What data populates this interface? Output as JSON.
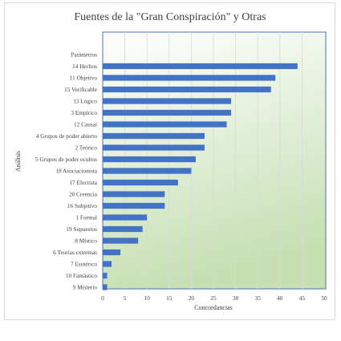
{
  "chart_data": {
    "type": "bar",
    "orientation": "horizontal",
    "title": "Fuentes de la \"Gran Conspiración\" y Otras",
    "xlabel": "Concordancias",
    "ylabel": "Análisis",
    "xlim": [
      0,
      50
    ],
    "x_ticks": [
      "0",
      "5",
      "10",
      "15",
      "20",
      "25",
      "30",
      "35",
      "40",
      "45",
      "50"
    ],
    "grid": true,
    "legend": "none",
    "colors": {
      "bar": "#4472c4",
      "plot_bg_top": "#ffffff",
      "plot_bg_bottom": "#c6e0b4",
      "plot_border": "#4472c4"
    },
    "categories": [
      "Parámetros",
      "14 Hechos",
      "11 Objetivo",
      "15 Verificable",
      "13 Lógico",
      "3 Empírico",
      "12 Causal",
      "4 Grupos de poder abierto",
      "2 Teórico",
      "5 Grupos de poder ocultos",
      "18 Asociacionista",
      "17 Efectista",
      "20 Creencia",
      "16 Subjetivo",
      "1 Formal",
      "19 Supuestos",
      "8 Místico",
      "6 Teorías extremas",
      "7 Esotérico",
      "10 Fantástico",
      "9 Misterio"
    ],
    "values": [
      0,
      44,
      39,
      38,
      29,
      29,
      28,
      23,
      23,
      21,
      20,
      17,
      14,
      14,
      10,
      9,
      8,
      4,
      2,
      1,
      1
    ]
  }
}
